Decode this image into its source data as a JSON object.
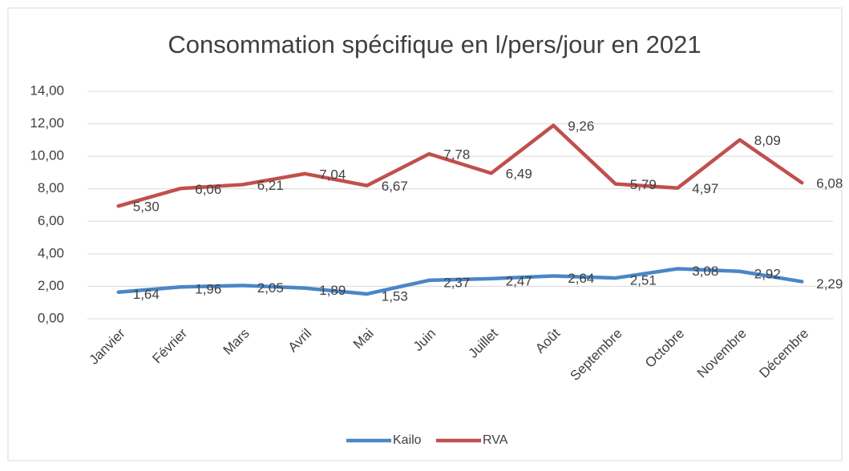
{
  "chart_data": {
    "type": "line",
    "stacked": true,
    "title": "Consommation spécifique en l/pers/jour en 2021",
    "categories": [
      "Janvier",
      "Février",
      "Mars",
      "Avril",
      "Mai",
      "Juin",
      "Juillet",
      "Août",
      "Septembre",
      "Octobre",
      "Novembre",
      "Décembre"
    ],
    "series": [
      {
        "name": "Kailo",
        "color": "#4a86c8",
        "values": [
          1.64,
          1.96,
          2.05,
          1.89,
          1.53,
          2.37,
          2.47,
          2.64,
          2.51,
          3.08,
          2.92,
          2.29
        ],
        "value_labels": [
          "1,64",
          "1,96",
          "2,05",
          "1,89",
          "1,53",
          "2,37",
          "2,47",
          "2,64",
          "2,51",
          "3,08",
          "2,92",
          "2,29"
        ]
      },
      {
        "name": "RVA",
        "color": "#c0504d",
        "values": [
          5.3,
          6.06,
          6.21,
          7.04,
          6.67,
          7.78,
          6.49,
          9.26,
          5.79,
          4.97,
          8.09,
          6.08
        ],
        "value_labels": [
          "5,30",
          "6,06",
          "6,21",
          "7,04",
          "6,67",
          "7,78",
          "6,49",
          "9,26",
          "5,79",
          "4,97",
          "8,09",
          "6,08"
        ]
      }
    ],
    "ylim": [
      0,
      14
    ],
    "yticks": [
      {
        "value": 0,
        "label": "0,00"
      },
      {
        "value": 2,
        "label": "2,00"
      },
      {
        "value": 4,
        "label": "4,00"
      },
      {
        "value": 6,
        "label": "6,00"
      },
      {
        "value": 8,
        "label": "8,00"
      },
      {
        "value": 10,
        "label": "10,00"
      },
      {
        "value": 12,
        "label": "12,00"
      },
      {
        "value": 14,
        "label": "14,00"
      }
    ],
    "grid": true,
    "legend": "bottom"
  }
}
